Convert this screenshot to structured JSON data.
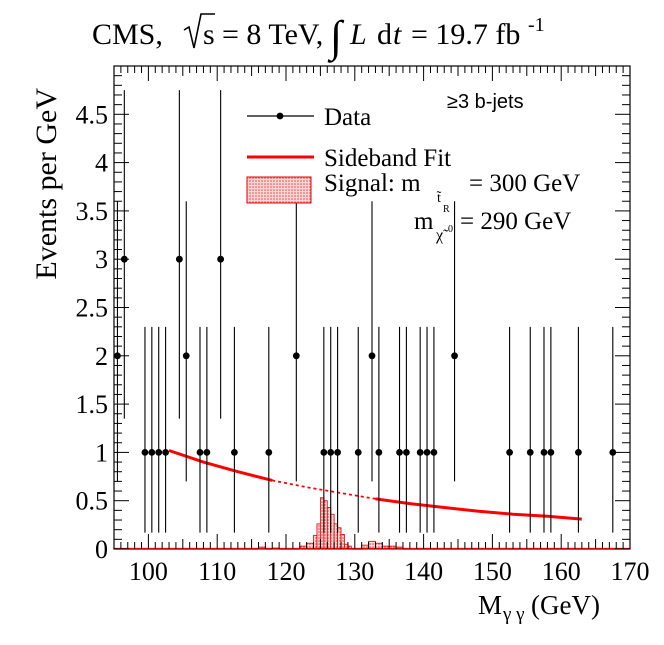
{
  "header": {
    "title_prefix": "CMS,",
    "title_sqrt": "s",
    "title_energy": "= 8 TeV,",
    "title_integral": "∫",
    "title_lumi_symbol": "L",
    "title_lumi_d": "d",
    "title_lumi_t": "t",
    "title_lumi_value": "= 19.7 fb",
    "title_lumi_exp": "-1"
  },
  "chart_data": {
    "type": "scatter",
    "xlabel_main": "M",
    "xlabel_sub": "γ γ",
    "xlabel_unit": "(GeV)",
    "ylabel": "Events per GeV",
    "xlim": [
      95,
      170
    ],
    "ylim": [
      0,
      5
    ],
    "x_ticks": [
      100,
      110,
      120,
      130,
      140,
      150,
      160,
      170
    ],
    "y_ticks": [
      0,
      0.5,
      1,
      1.5,
      2,
      2.5,
      3,
      3.5,
      4,
      4.5
    ],
    "y_tick_labels": [
      "0",
      "0.5",
      "1",
      "1.5",
      "2",
      "2.5",
      "3",
      "3.5",
      "4",
      "4.5"
    ],
    "annotation": "≥3 b-jets",
    "legend": {
      "data_label": "Data",
      "fit_label": "Sideband Fit",
      "signal_label_1": "Signal: m",
      "signal_sub_1": "t̃",
      "signal_sub_1b": "R",
      "signal_value_1": "= 300 GeV",
      "signal_label_2": "m",
      "signal_sub_2": "χ̃",
      "signal_sup_2": "0",
      "signal_value_2": "= 290 GeV"
    },
    "colors": {
      "data": "#000000",
      "fit": "#ff0000",
      "signal_fill": "#f4a6a6",
      "signal_line": "#e60000"
    },
    "series": [
      {
        "name": "Data",
        "type": "scatter",
        "points": [
          {
            "x": 95.5,
            "y": 2
          },
          {
            "x": 96.5,
            "y": 3
          },
          {
            "x": 99.5,
            "y": 1
          },
          {
            "x": 100.5,
            "y": 1
          },
          {
            "x": 101.5,
            "y": 1
          },
          {
            "x": 102.5,
            "y": 1
          },
          {
            "x": 104.5,
            "y": 3
          },
          {
            "x": 105.5,
            "y": 2
          },
          {
            "x": 107.5,
            "y": 1
          },
          {
            "x": 108.5,
            "y": 1
          },
          {
            "x": 110.5,
            "y": 3
          },
          {
            "x": 112.5,
            "y": 1
          },
          {
            "x": 117.5,
            "y": 1
          },
          {
            "x": 121.5,
            "y": 2
          },
          {
            "x": 125.5,
            "y": 1
          },
          {
            "x": 126.5,
            "y": 1
          },
          {
            "x": 127.5,
            "y": 1
          },
          {
            "x": 130.5,
            "y": 1
          },
          {
            "x": 132.5,
            "y": 2
          },
          {
            "x": 133.5,
            "y": 1
          },
          {
            "x": 136.5,
            "y": 1
          },
          {
            "x": 137.5,
            "y": 1
          },
          {
            "x": 139.5,
            "y": 1
          },
          {
            "x": 140.5,
            "y": 1
          },
          {
            "x": 141.5,
            "y": 1
          },
          {
            "x": 144.5,
            "y": 2
          },
          {
            "x": 152.5,
            "y": 1
          },
          {
            "x": 155.5,
            "y": 1
          },
          {
            "x": 157.5,
            "y": 1
          },
          {
            "x": 158.5,
            "y": 1
          },
          {
            "x": 162.5,
            "y": 1
          },
          {
            "x": 167.5,
            "y": 1
          }
        ]
      },
      {
        "name": "Sideband Fit",
        "type": "line",
        "points": [
          {
            "x": 103,
            "y": 1.02
          },
          {
            "x": 108,
            "y": 0.9
          },
          {
            "x": 113,
            "y": 0.8
          },
          {
            "x": 118,
            "y": 0.71
          },
          {
            "x": 123,
            "y": 0.64
          },
          {
            "x": 128,
            "y": 0.58
          },
          {
            "x": 133,
            "y": 0.52
          },
          {
            "x": 138,
            "y": 0.47
          },
          {
            "x": 143,
            "y": 0.43
          },
          {
            "x": 148,
            "y": 0.39
          },
          {
            "x": 153,
            "y": 0.36
          },
          {
            "x": 158,
            "y": 0.34
          },
          {
            "x": 163,
            "y": 0.31
          }
        ],
        "dashed_range": [
          118,
          133
        ]
      },
      {
        "name": "Signal",
        "type": "histogram",
        "bins": [
          {
            "x0": 116,
            "x1": 117,
            "y": 0.02
          },
          {
            "x0": 118,
            "x1": 119,
            "y": 0.01
          },
          {
            "x0": 122,
            "x1": 123,
            "y": 0.03
          },
          {
            "x0": 123,
            "x1": 124,
            "y": 0.06
          },
          {
            "x0": 124,
            "x1": 124.5,
            "y": 0.14
          },
          {
            "x0": 124.5,
            "x1": 125,
            "y": 0.26
          },
          {
            "x0": 125,
            "x1": 125.5,
            "y": 0.53
          },
          {
            "x0": 125.5,
            "x1": 126,
            "y": 0.5
          },
          {
            "x0": 126,
            "x1": 126.5,
            "y": 0.43
          },
          {
            "x0": 126.5,
            "x1": 127,
            "y": 0.36
          },
          {
            "x0": 127,
            "x1": 127.5,
            "y": 0.26
          },
          {
            "x0": 127.5,
            "x1": 128,
            "y": 0.22
          },
          {
            "x0": 128,
            "x1": 128.5,
            "y": 0.15
          },
          {
            "x0": 128.5,
            "x1": 129,
            "y": 0.05
          },
          {
            "x0": 129,
            "x1": 129.5,
            "y": 0.03
          },
          {
            "x0": 131,
            "x1": 132,
            "y": 0.04
          },
          {
            "x0": 132,
            "x1": 133,
            "y": 0.08
          },
          {
            "x0": 133,
            "x1": 134,
            "y": 0.06
          },
          {
            "x0": 134,
            "x1": 136,
            "y": 0.03
          },
          {
            "x0": 136,
            "x1": 137,
            "y": 0.02
          }
        ]
      }
    ]
  }
}
